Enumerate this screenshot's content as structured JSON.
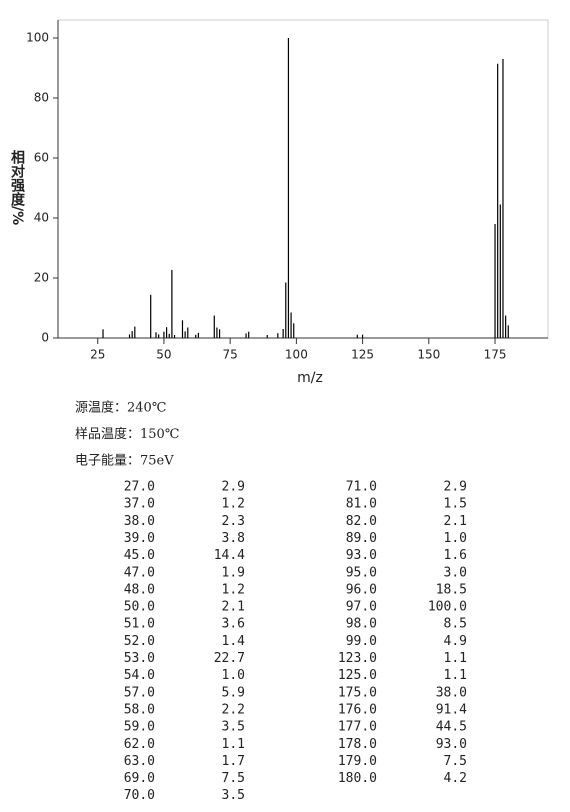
{
  "chart_data": {
    "type": "bar",
    "xlabel": "m/z",
    "ylabel": "相对强度/%",
    "x": [
      27,
      37,
      38,
      39,
      45,
      47,
      48,
      50,
      51,
      52,
      53,
      54,
      57,
      58,
      59,
      62,
      63,
      69,
      70,
      71,
      81,
      82,
      89,
      93,
      95,
      96,
      97,
      98,
      99,
      123,
      125,
      175,
      176,
      177,
      178,
      179,
      180
    ],
    "values": [
      2.9,
      1.2,
      2.3,
      3.8,
      14.4,
      1.9,
      1.2,
      2.1,
      3.6,
      1.4,
      22.7,
      1.0,
      5.9,
      2.2,
      3.5,
      1.1,
      1.7,
      7.5,
      3.5,
      2.9,
      1.5,
      2.1,
      1.0,
      1.6,
      3.0,
      18.5,
      100,
      8.5,
      4.9,
      1.1,
      1.1,
      38.0,
      91.4,
      44.5,
      93.0,
      7.5,
      4.2
    ],
    "color": "#000000",
    "xlim": [
      10,
      195
    ],
    "xticks": [
      25,
      50,
      75,
      100,
      125,
      150,
      175
    ],
    "ylim": [
      0,
      100
    ],
    "yticks": [
      0,
      20,
      40,
      60,
      80,
      100
    ]
  },
  "info": [
    "源温度：240℃",
    "样品温度：150℃",
    "电子能量：75eV"
  ],
  "table": {
    "rows": [
      [
        "27.0",
        "2.9"
      ],
      [
        "37.0",
        "1.2"
      ],
      [
        "38.0",
        "2.3"
      ],
      [
        "39.0",
        "3.8"
      ],
      [
        "45.0",
        "14.4"
      ],
      [
        "47.0",
        "1.9"
      ],
      [
        "48.0",
        "1.2"
      ],
      [
        "50.0",
        "2.1"
      ],
      [
        "51.0",
        "3.6"
      ],
      [
        "52.0",
        "1.4"
      ],
      [
        "53.0",
        "22.7"
      ],
      [
        "54.0",
        "1.0"
      ],
      [
        "57.0",
        "5.9"
      ],
      [
        "58.0",
        "2.2"
      ],
      [
        "59.0",
        "3.5"
      ],
      [
        "62.0",
        "1.1"
      ],
      [
        "63.0",
        "1.7"
      ],
      [
        "69.0",
        "7.5"
      ],
      [
        "70.0",
        "3.5"
      ],
      [
        "71.0",
        "2.9"
      ],
      [
        "81.0",
        "1.5"
      ],
      [
        "82.0",
        "2.1"
      ],
      [
        "89.0",
        "1.0"
      ],
      [
        "93.0",
        "1.6"
      ],
      [
        "95.0",
        "3.0"
      ],
      [
        "96.0",
        "18.5"
      ],
      [
        "97.0",
        "100.0"
      ],
      [
        "98.0",
        "8.5"
      ],
      [
        "99.0",
        "4.9"
      ],
      [
        "123.0",
        "1.1"
      ],
      [
        "125.0",
        "1.1"
      ],
      [
        "175.0",
        "38.0"
      ],
      [
        "176.0",
        "91.4"
      ],
      [
        "177.0",
        "44.5"
      ],
      [
        "178.0",
        "93.0"
      ],
      [
        "179.0",
        "7.5"
      ],
      [
        "180.0",
        "4.2"
      ]
    ]
  }
}
